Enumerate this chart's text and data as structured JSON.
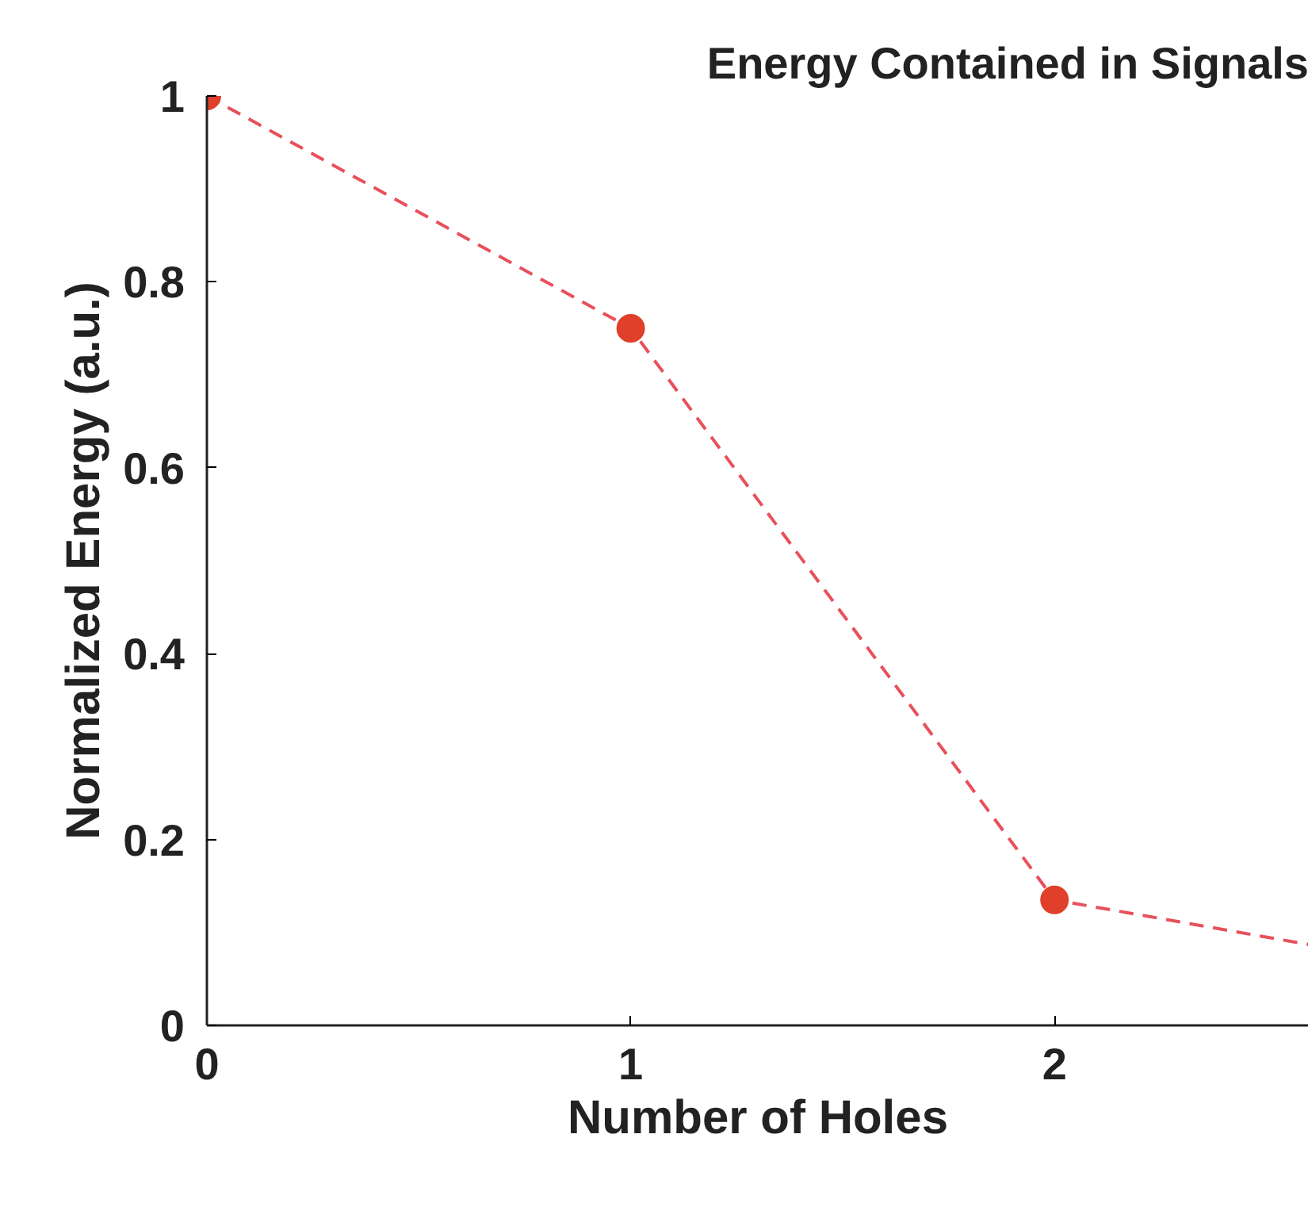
{
  "chart_data": {
    "type": "line",
    "title": "Energy Contained in Signals",
    "xlabel": "Number of Holes",
    "ylabel": "Normalized Energy (a.u.)",
    "series": [
      {
        "color": "#e8505b",
        "x": [
          0,
          1,
          2,
          2.6
        ],
        "values": [
          1,
          0.75,
          0.135,
          0.087
        ],
        "line_style": "dashed",
        "marker": "none"
      },
      {
        "type": "scatter",
        "color": "#e0402a",
        "x": [
          0,
          1,
          2
        ],
        "values": [
          1,
          0.75,
          0.135
        ],
        "marker": "circle"
      }
    ],
    "xlim": [
      0,
      2.6
    ],
    "ylim": [
      0,
      1
    ],
    "xticks": [
      0,
      1,
      2
    ],
    "yticks": [
      0,
      0.2,
      0.4,
      0.6,
      0.8,
      1
    ],
    "grid": false
  }
}
